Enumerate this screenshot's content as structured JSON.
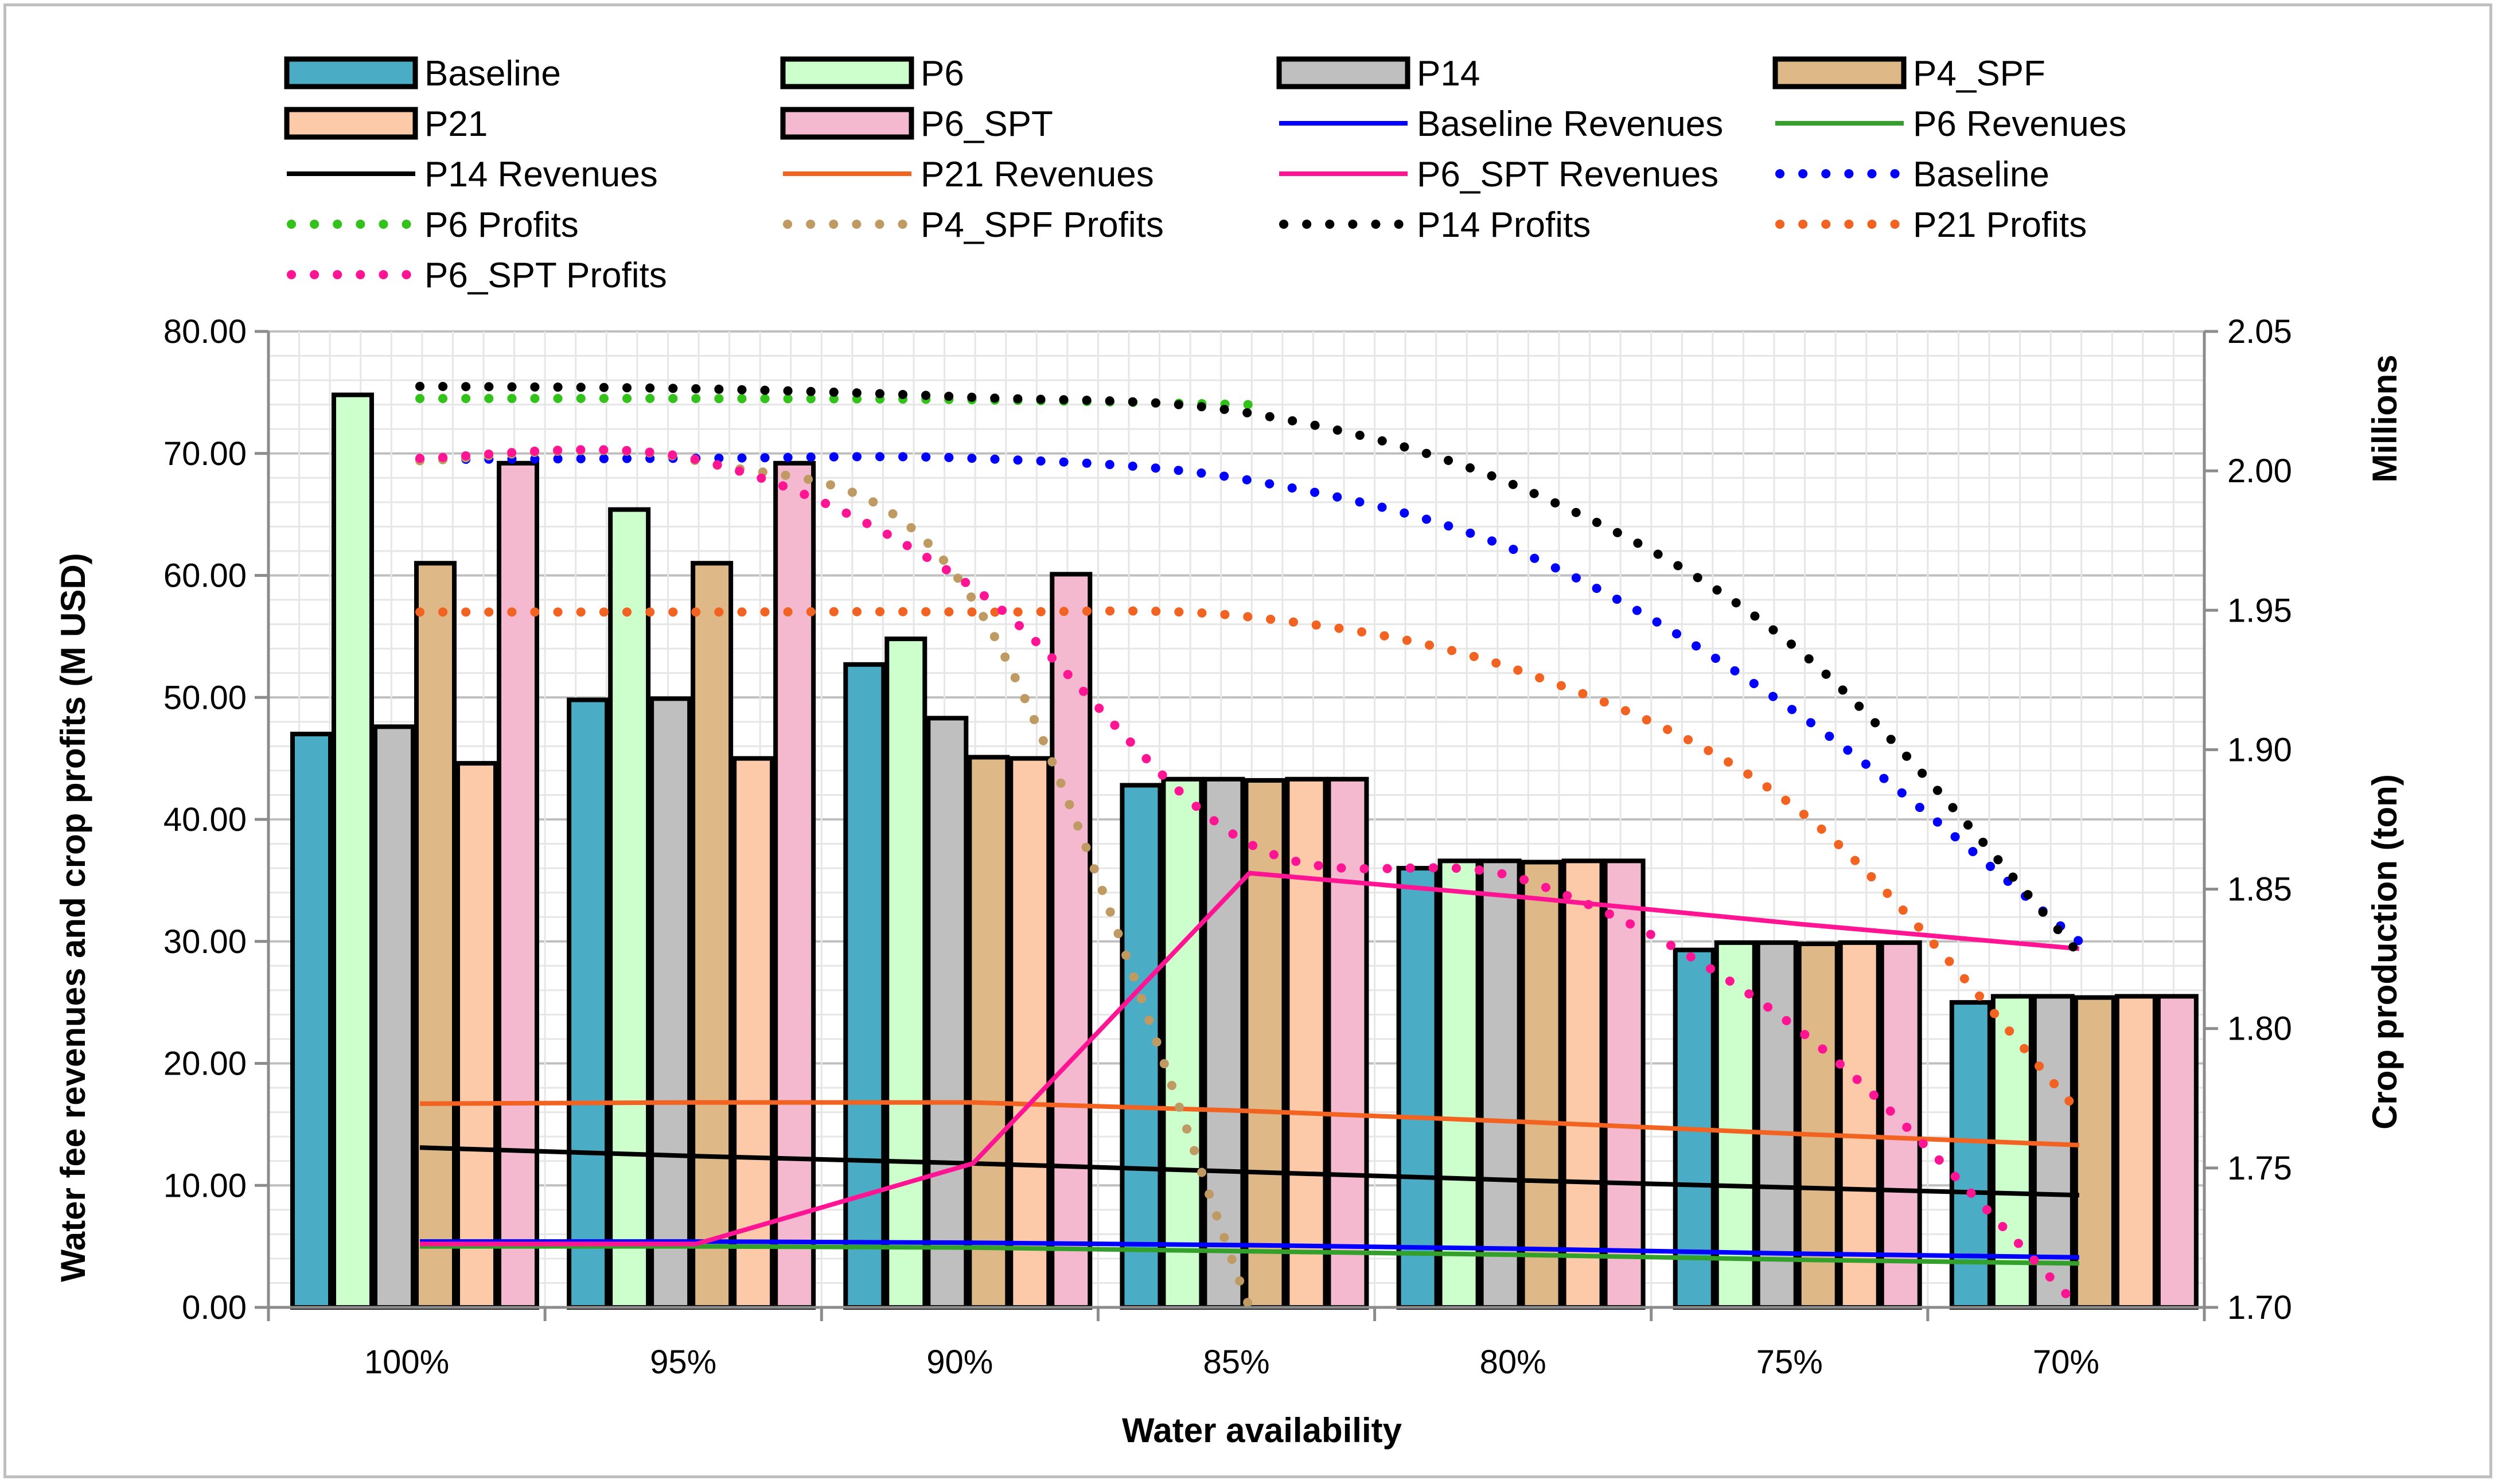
{
  "chart_data": {
    "type": "bar",
    "title": "",
    "xlabel": "Water availability",
    "ylabel": "Water fee revenues and crop profits (M USD)",
    "y2label": "Crop production (ton)",
    "y2unit": "Millions",
    "categories": [
      "100%",
      "95%",
      "90%",
      "85%",
      "80%",
      "75%",
      "70%"
    ],
    "ylim": [
      0,
      80
    ],
    "y2lim": [
      1.7,
      2.05
    ],
    "yticks": [
      "0.00",
      "10.00",
      "20.00",
      "30.00",
      "40.00",
      "50.00",
      "60.00",
      "70.00",
      "80.00"
    ],
    "y2ticks": [
      "1.70",
      "1.75",
      "1.80",
      "1.85",
      "1.90",
      "1.95",
      "2.00",
      "2.05"
    ],
    "bar_series": [
      {
        "name": "Baseline",
        "color": "#4bacc6",
        "values": [
          47.0,
          49.8,
          52.7,
          42.8,
          36.0,
          29.3,
          25.0
        ]
      },
      {
        "name": "P6",
        "color": "#ccffcc",
        "values": [
          74.8,
          65.4,
          54.8,
          43.3,
          36.6,
          29.9,
          25.5
        ]
      },
      {
        "name": "P14",
        "color": "#bfbfbf",
        "values": [
          47.6,
          49.9,
          48.3,
          43.3,
          36.6,
          29.9,
          25.5
        ]
      },
      {
        "name": "P4_SPF",
        "color": "#deb887",
        "values": [
          61.0,
          61.0,
          45.1,
          43.2,
          36.5,
          29.8,
          25.4
        ]
      },
      {
        "name": "P21",
        "color": "#fcc9a9",
        "values": [
          44.6,
          45.0,
          45.0,
          43.3,
          36.6,
          29.9,
          25.5
        ]
      },
      {
        "name": "P6_SPT",
        "color": "#f4b8cf",
        "values": [
          69.2,
          69.2,
          60.1,
          43.3,
          36.6,
          29.9,
          25.5
        ]
      }
    ],
    "revenue_series": [
      {
        "name": "Baseline Revenues",
        "color": "#0000ff",
        "values": [
          5.4,
          5.4,
          5.3,
          5.1,
          4.8,
          4.4,
          4.1
        ]
      },
      {
        "name": "P6 Revenues",
        "color": "#33a02c",
        "values": [
          5.0,
          5.0,
          4.9,
          4.6,
          4.3,
          3.9,
          3.6
        ]
      },
      {
        "name": "P14 Revenues",
        "color": "#000000",
        "values": [
          13.1,
          12.4,
          11.8,
          11.1,
          10.4,
          9.8,
          9.2
        ]
      },
      {
        "name": "P21 Revenues",
        "color": "#f26322",
        "values": [
          16.7,
          16.8,
          16.8,
          16.1,
          15.2,
          14.2,
          13.3
        ]
      },
      {
        "name": "P6_SPT Revenues",
        "color": "#ff1493",
        "values": [
          5.2,
          5.2,
          11.8,
          35.6,
          33.6,
          31.4,
          29.4
        ]
      }
    ],
    "profit_series": [
      {
        "name": "Baseline",
        "color": "#0000ff",
        "values": [
          69.5,
          69.6,
          69.6,
          67.8,
          61.7,
          48.4,
          30.0
        ]
      },
      {
        "name": "P6 Profits",
        "color": "#33c21a",
        "values": [
          74.5,
          74.5,
          74.4,
          74.0,
          null,
          null,
          null
        ]
      },
      {
        "name": "P4_SPF Profits",
        "color": "#bf9b63",
        "values": [
          69.4,
          69.4,
          58.0,
          0.0,
          null,
          null,
          null
        ]
      },
      {
        "name": "P14 Profits",
        "color": "#000000",
        "values": [
          75.5,
          75.3,
          74.6,
          73.3,
          67.0,
          53.6,
          29.0
        ]
      },
      {
        "name": "P21 Profits",
        "color": "#f26322",
        "values": [
          57.0,
          57.0,
          57.0,
          56.6,
          52.0,
          40.5,
          16.0
        ]
      },
      {
        "name": "P6_SPT Profits",
        "color": "#ff1493",
        "values": [
          69.6,
          69.5,
          59.0,
          38.0,
          35.0,
          22.5,
          0.0
        ]
      }
    ],
    "legend": [
      {
        "label": "Baseline",
        "kind": "bar",
        "color": "#4bacc6"
      },
      {
        "label": "P6",
        "kind": "bar",
        "color": "#ccffcc"
      },
      {
        "label": "P14",
        "kind": "bar",
        "color": "#bfbfbf"
      },
      {
        "label": "P4_SPF",
        "kind": "bar",
        "color": "#deb887"
      },
      {
        "label": "P21",
        "kind": "bar",
        "color": "#fcc9a9"
      },
      {
        "label": "P6_SPT",
        "kind": "bar",
        "color": "#f4b8cf"
      },
      {
        "label": "Baseline Revenues",
        "kind": "line",
        "color": "#0000ff"
      },
      {
        "label": "P6 Revenues",
        "kind": "line",
        "color": "#33a02c"
      },
      {
        "label": "P14 Revenues",
        "kind": "line",
        "color": "#000000"
      },
      {
        "label": "P21 Revenues",
        "kind": "line",
        "color": "#f26322"
      },
      {
        "label": "P6_SPT Revenues",
        "kind": "line",
        "color": "#ff1493"
      },
      {
        "label": "Baseline",
        "kind": "dot",
        "color": "#0000ff"
      },
      {
        "label": "P6 Profits",
        "kind": "dot",
        "color": "#33c21a"
      },
      {
        "label": "P4_SPF Profits",
        "kind": "dot",
        "color": "#bf9b63"
      },
      {
        "label": "P14 Profits",
        "kind": "dot",
        "color": "#000000"
      },
      {
        "label": "P21 Profits",
        "kind": "dot",
        "color": "#f26322"
      },
      {
        "label": "P6_SPT Profits",
        "kind": "dot",
        "color": "#ff1493"
      }
    ]
  }
}
